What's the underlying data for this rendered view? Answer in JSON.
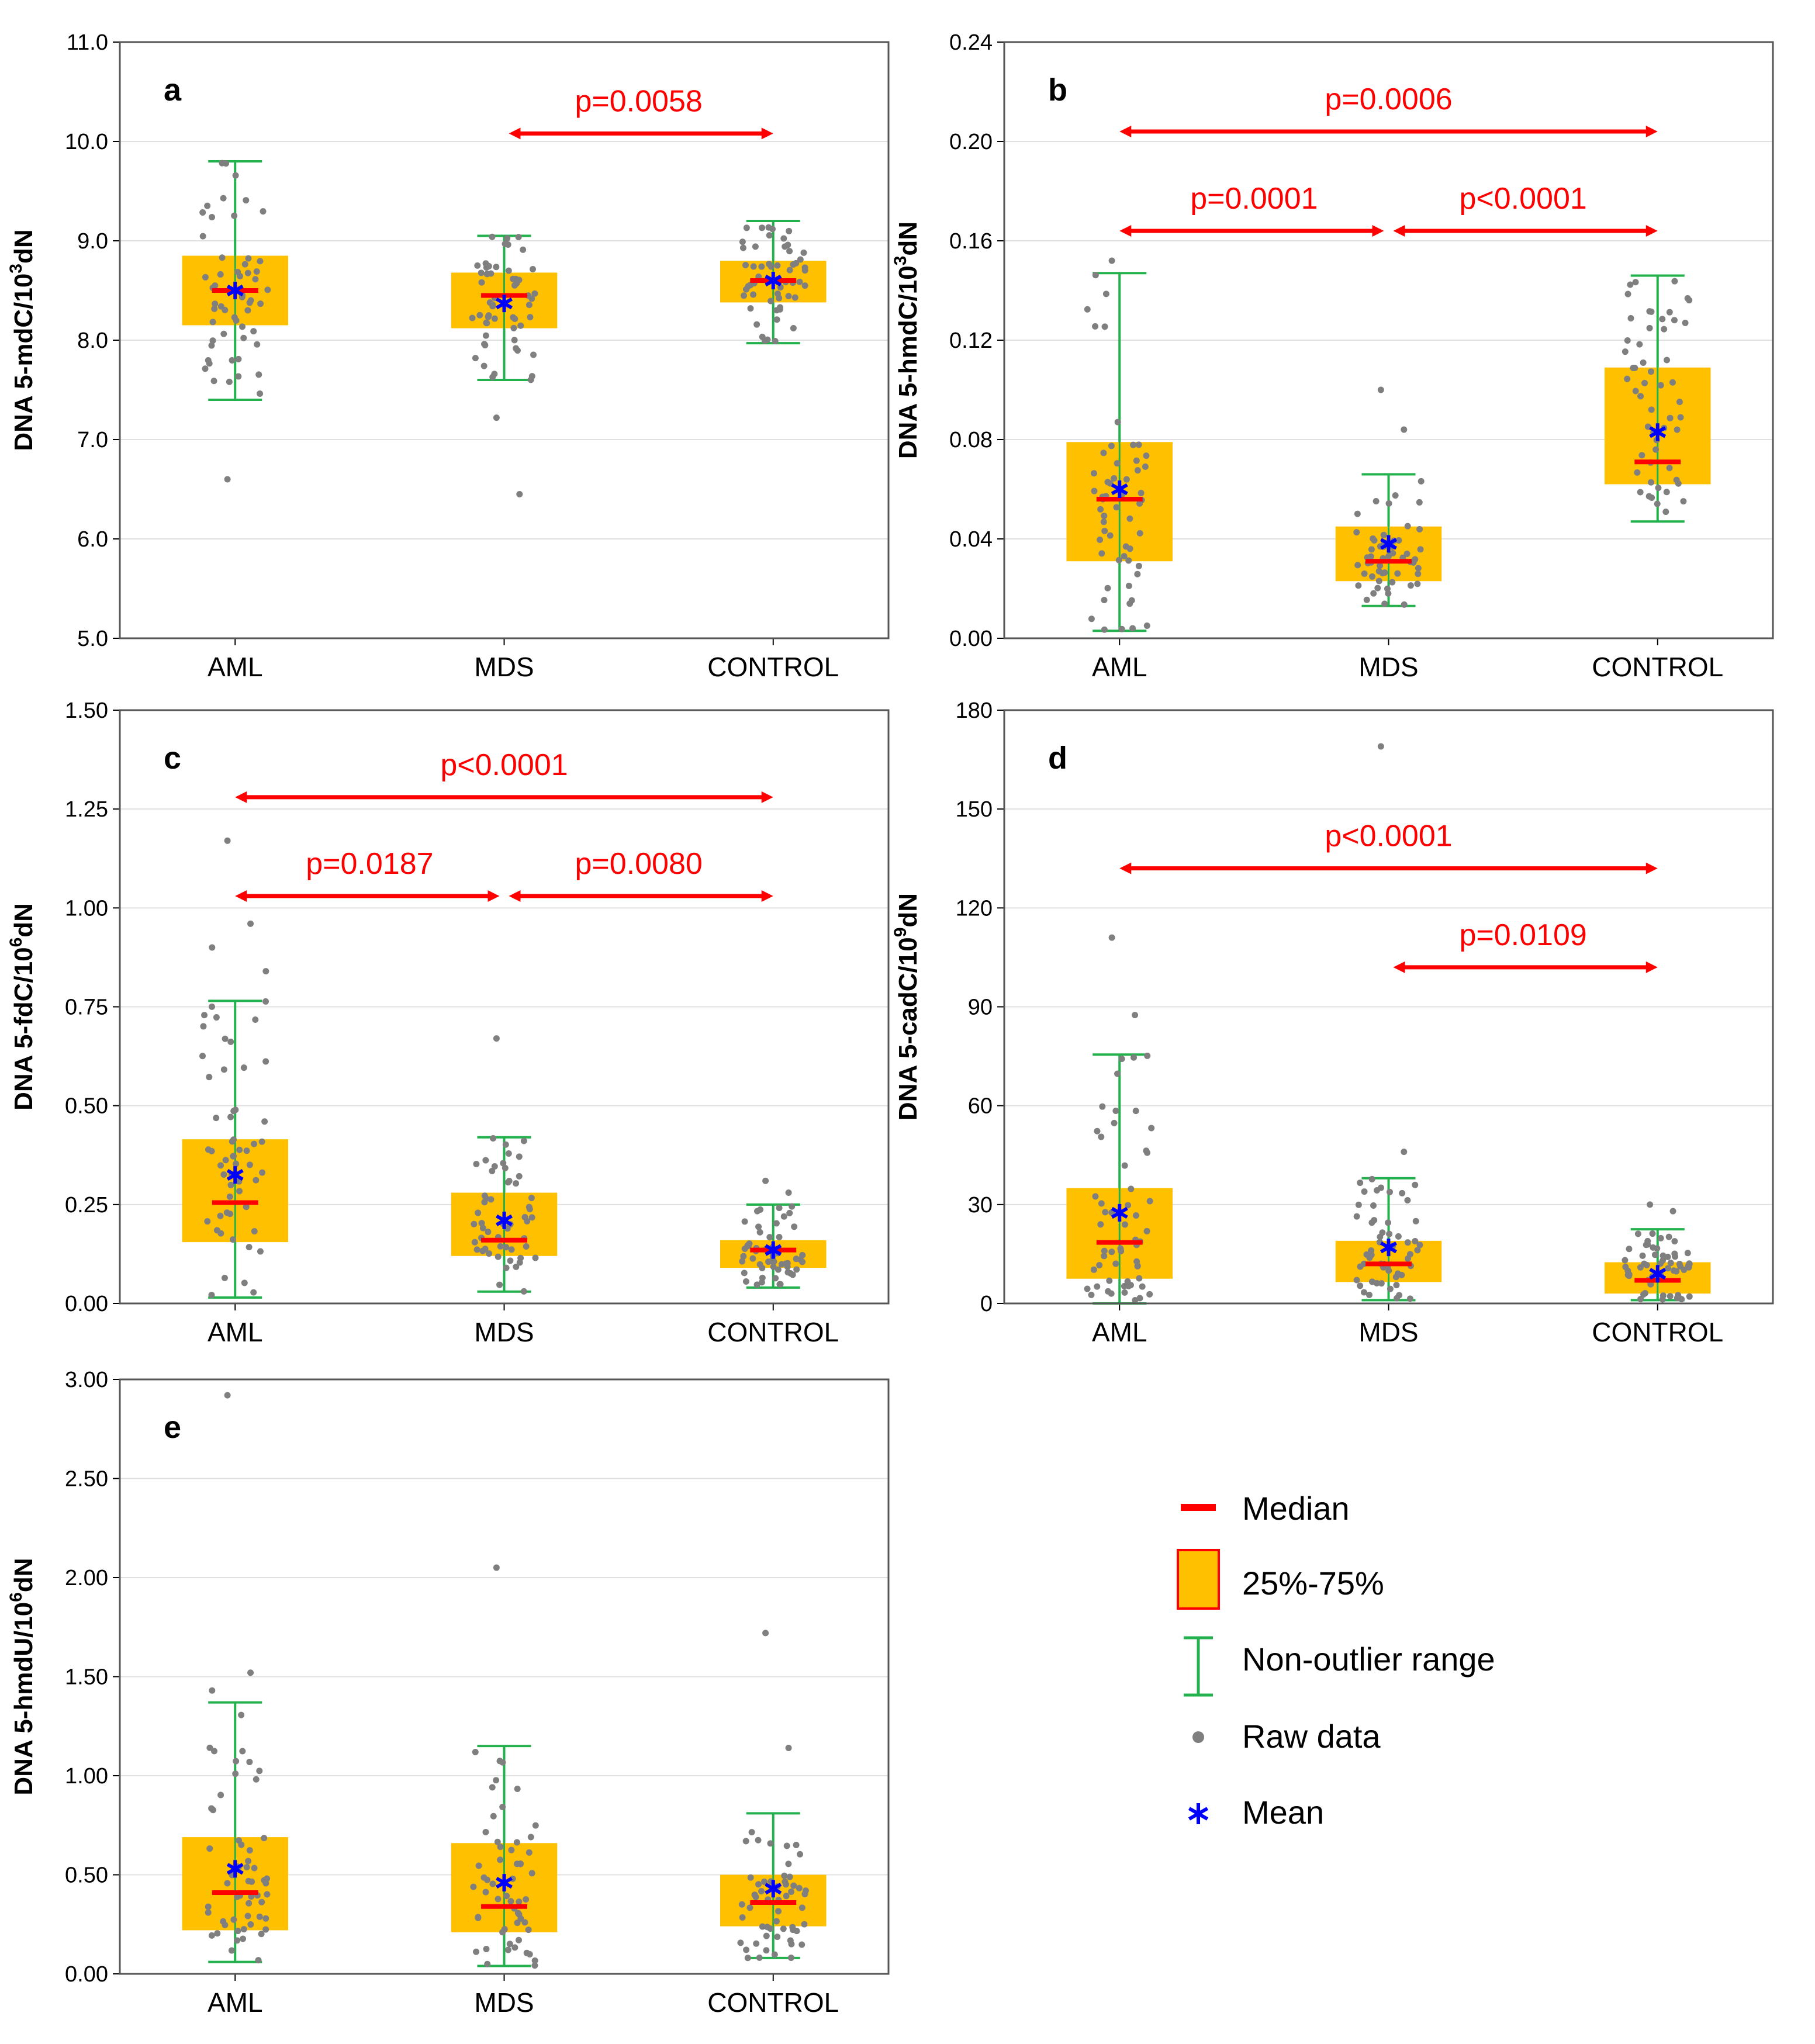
{
  "colors": {
    "box_fill": "#ffc000",
    "median": "#ff0000",
    "whisker": "#22b14c",
    "raw": "#7f7f7f",
    "mean": "#0000ff",
    "sig": "#ff0000"
  },
  "legend": {
    "median": "Median",
    "box": "25%-75%",
    "whisker": "Non-outlier range",
    "raw": "Raw data",
    "mean": "Mean"
  },
  "chart_data": [
    {
      "type": "box",
      "panel": "a",
      "ylabel": {
        "main": "DNA 5-mdC/10",
        "sup": "3",
        "unit": "dN"
      },
      "ylim": [
        5.0,
        11.0
      ],
      "ticks": [
        "5.0",
        "6.0",
        "7.0",
        "8.0",
        "9.0",
        "10.0",
        "11.0"
      ],
      "categories": [
        "AML",
        "MDS",
        "CONTROL"
      ],
      "boxes": [
        {
          "q1": 8.15,
          "q3": 8.85,
          "median": 8.5,
          "mean": 8.5,
          "wlo": 7.4,
          "whi": 9.8,
          "outliers": [
            6.6
          ]
        },
        {
          "q1": 8.12,
          "q3": 8.68,
          "median": 8.45,
          "mean": 8.37,
          "wlo": 7.6,
          "whi": 9.05,
          "outliers": [
            7.22,
            6.45
          ]
        },
        {
          "q1": 8.38,
          "q3": 8.8,
          "median": 8.6,
          "mean": 8.6,
          "wlo": 7.97,
          "whi": 9.2,
          "outliers": []
        }
      ],
      "comparisons": [
        {
          "from": 1,
          "to": 2,
          "y": 10.08,
          "label": "p=0.0058"
        }
      ]
    },
    {
      "type": "box",
      "panel": "b",
      "ylabel": {
        "main": "DNA 5-hmdC/10",
        "sup": "3",
        "unit": "dN"
      },
      "ylim": [
        0.0,
        0.24
      ],
      "ticks": [
        "0.00",
        "0.04",
        "0.08",
        "0.12",
        "0.16",
        "0.20",
        "0.24"
      ],
      "categories": [
        "AML",
        "MDS",
        "CONTROL"
      ],
      "boxes": [
        {
          "q1": 0.031,
          "q3": 0.079,
          "median": 0.056,
          "mean": 0.06,
          "wlo": 0.003,
          "whi": 0.147,
          "outliers": [
            0.152
          ]
        },
        {
          "q1": 0.023,
          "q3": 0.045,
          "median": 0.031,
          "mean": 0.038,
          "wlo": 0.013,
          "whi": 0.066,
          "outliers": [
            0.1,
            0.084
          ]
        },
        {
          "q1": 0.062,
          "q3": 0.109,
          "median": 0.071,
          "mean": 0.083,
          "wlo": 0.047,
          "whi": 0.146,
          "outliers": []
        }
      ],
      "comparisons": [
        {
          "from": 0,
          "to": 2,
          "y": 0.204,
          "label": "p=0.0006"
        },
        {
          "from": 0,
          "to": 1,
          "y": 0.164,
          "label": "p=0.0001"
        },
        {
          "from": 1,
          "to": 2,
          "y": 0.164,
          "label": "p<0.0001"
        }
      ]
    },
    {
      "type": "box",
      "panel": "c",
      "ylabel": {
        "main": "DNA 5-fdC/10",
        "sup": "6",
        "unit": "dN"
      },
      "ylim": [
        0.0,
        1.5
      ],
      "ticks": [
        "0.00",
        "0.25",
        "0.50",
        "0.75",
        "1.00",
        "1.25",
        "1.50"
      ],
      "categories": [
        "AML",
        "MDS",
        "CONTROL"
      ],
      "boxes": [
        {
          "q1": 0.155,
          "q3": 0.415,
          "median": 0.255,
          "mean": 0.325,
          "wlo": 0.015,
          "whi": 0.765,
          "outliers": [
            1.17,
            0.96,
            0.9,
            0.84
          ]
        },
        {
          "q1": 0.12,
          "q3": 0.28,
          "median": 0.16,
          "mean": 0.21,
          "wlo": 0.03,
          "whi": 0.42,
          "outliers": [
            0.67
          ]
        },
        {
          "q1": 0.09,
          "q3": 0.16,
          "median": 0.135,
          "mean": 0.135,
          "wlo": 0.04,
          "whi": 0.25,
          "outliers": [
            0.31,
            0.28
          ]
        }
      ],
      "comparisons": [
        {
          "from": 0,
          "to": 2,
          "y": 1.28,
          "label": "p<0.0001"
        },
        {
          "from": 0,
          "to": 1,
          "y": 1.03,
          "label": "p=0.0187"
        },
        {
          "from": 1,
          "to": 2,
          "y": 1.03,
          "label": "p=0.0080"
        }
      ]
    },
    {
      "type": "box",
      "panel": "d",
      "ylabel": {
        "main": "DNA 5-cadC/10",
        "sup": "9",
        "unit": "dN"
      },
      "ylim": [
        0,
        180
      ],
      "ticks": [
        "0",
        "30",
        "60",
        "90",
        "120",
        "150",
        "180"
      ],
      "categories": [
        "AML",
        "MDS",
        "CONTROL"
      ],
      "boxes": [
        {
          "q1": 7.5,
          "q3": 35,
          "median": 18.5,
          "mean": 27.5,
          "wlo": 0,
          "whi": 75.5,
          "outliers": [
            111,
            87.5
          ]
        },
        {
          "q1": 6.5,
          "q3": 19,
          "median": 12,
          "mean": 17,
          "wlo": 1,
          "whi": 38,
          "outliers": [
            169,
            46
          ]
        },
        {
          "q1": 3,
          "q3": 12.5,
          "median": 7,
          "mean": 9,
          "wlo": 1,
          "whi": 22.5,
          "outliers": [
            30,
            28
          ]
        }
      ],
      "comparisons": [
        {
          "from": 0,
          "to": 2,
          "y": 132,
          "label": "p<0.0001"
        },
        {
          "from": 1,
          "to": 2,
          "y": 102,
          "label": "p=0.0109"
        }
      ]
    },
    {
      "type": "box",
      "panel": "e",
      "ylabel": {
        "main": "DNA 5-hmdU/10",
        "sup": "6",
        "unit": "dN"
      },
      "ylim": [
        0.0,
        3.0
      ],
      "ticks": [
        "0.00",
        "0.50",
        "1.00",
        "1.50",
        "2.00",
        "2.50",
        "3.00"
      ],
      "categories": [
        "AML",
        "MDS",
        "CONTROL"
      ],
      "boxes": [
        {
          "q1": 0.22,
          "q3": 0.69,
          "median": 0.41,
          "mean": 0.53,
          "wlo": 0.06,
          "whi": 1.37,
          "outliers": [
            2.92,
            1.52,
            1.43
          ]
        },
        {
          "q1": 0.21,
          "q3": 0.66,
          "median": 0.34,
          "mean": 0.46,
          "wlo": 0.04,
          "whi": 1.15,
          "outliers": [
            2.05
          ]
        },
        {
          "q1": 0.24,
          "q3": 0.5,
          "median": 0.36,
          "mean": 0.43,
          "wlo": 0.08,
          "whi": 0.81,
          "outliers": [
            1.72,
            1.14
          ]
        }
      ],
      "comparisons": []
    }
  ]
}
